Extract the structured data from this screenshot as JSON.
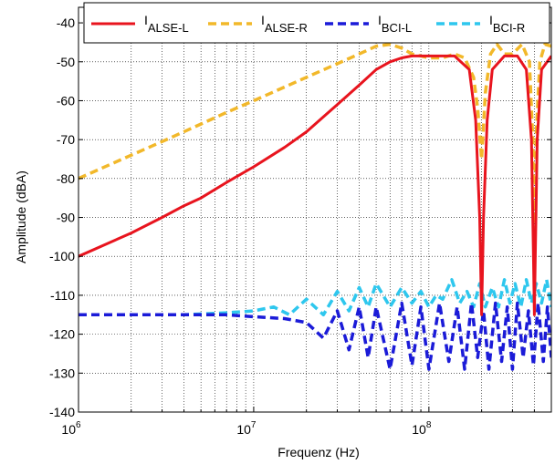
{
  "chart_data": {
    "type": "line",
    "title": "",
    "xlabel": "Frequenz (Hz)",
    "ylabel": "Amplitude (dBA)",
    "xscale": "log",
    "xlim": [
      1000000,
      500000000
    ],
    "ylim": [
      -140,
      -36
    ],
    "yticks": [
      -140,
      -130,
      -120,
      -110,
      -100,
      -90,
      -80,
      -70,
      -60,
      -50,
      -40
    ],
    "xticks": [
      {
        "value": 1000000,
        "base": "10",
        "exp": "6"
      },
      {
        "value": 10000000,
        "base": "10",
        "exp": "7"
      },
      {
        "value": 100000000,
        "base": "10",
        "exp": "8"
      }
    ],
    "grid": true,
    "legend_position": "top",
    "series": [
      {
        "name_main": "I",
        "name_sub": "ALSE-L",
        "color": "#e8141e",
        "style": "solid",
        "x": [
          1000000.0,
          2000000.0,
          3000000.0,
          4000000.0,
          5000000.0,
          7000000.0,
          10000000.0,
          15000000.0,
          20000000.0,
          30000000.0,
          40000000.0,
          50000000.0,
          60000000.0,
          70000000.0,
          80000000.0,
          100000000.0,
          140000000.0,
          170000000.0,
          185000000.0,
          195000000.0,
          200000000.0,
          205000000.0,
          215000000.0,
          230000000.0,
          270000000.0,
          320000000.0,
          360000000.0,
          385000000.0,
          395000000.0,
          400000000.0,
          405000000.0,
          415000000.0,
          440000000.0,
          500000000.0
        ],
        "y": [
          -100,
          -94,
          -90,
          -87,
          -85,
          -81,
          -77,
          -72,
          -68,
          -61,
          -56,
          -52,
          -50,
          -49,
          -48.5,
          -48.5,
          -48.5,
          -52,
          -65,
          -90,
          -115,
          -90,
          -65,
          -52,
          -48.5,
          -48.5,
          -52,
          -70,
          -100,
          -115,
          -100,
          -70,
          -52,
          -48.5
        ]
      },
      {
        "name_main": "I",
        "name_sub": "ALSE-R",
        "color": "#f2b82a",
        "style": "dashed",
        "x": [
          1000000.0,
          2000000.0,
          3000000.0,
          5000000.0,
          7000000.0,
          10000000.0,
          15000000.0,
          20000000.0,
          30000000.0,
          40000000.0,
          50000000.0,
          60000000.0,
          70000000.0,
          80000000.0,
          100000000.0,
          120000000.0,
          140000000.0,
          160000000.0,
          180000000.0,
          190000000.0,
          200000000.0,
          210000000.0,
          225000000.0,
          245000000.0,
          270000000.0,
          300000000.0,
          340000000.0,
          375000000.0,
          390000000.0,
          400000000.0,
          410000000.0,
          430000000.0,
          460000000.0,
          500000000.0
        ],
        "y": [
          -80,
          -74,
          -70.5,
          -66,
          -63,
          -60,
          -56.5,
          -54,
          -50.5,
          -48,
          -46,
          -45.5,
          -46.5,
          -48,
          -49,
          -49,
          -48,
          -49,
          -54,
          -62,
          -75,
          -58,
          -48,
          -45.5,
          -48,
          -48,
          -45.5,
          -50,
          -68,
          -95,
          -68,
          -50,
          -45.5,
          -46
        ]
      },
      {
        "name_main": "I",
        "name_sub": "BCI-L",
        "color": "#1b1bd8",
        "style": "dashed",
        "x": [
          1000000.0,
          2000000.0,
          4000000.0,
          7000000.0,
          10000000.0,
          15000000.0,
          20000000.0,
          25000000.0,
          30000000.0,
          35000000.0,
          40000000.0,
          45000000.0,
          50000000.0,
          60000000.0,
          70000000.0,
          80000000.0,
          90000000.0,
          100000000.0,
          115000000.0,
          130000000.0,
          145000000.0,
          160000000.0,
          175000000.0,
          190000000.0,
          205000000.0,
          220000000.0,
          240000000.0,
          260000000.0,
          280000000.0,
          300000000.0,
          320000000.0,
          345000000.0,
          370000000.0,
          395000000.0,
          420000000.0,
          450000000.0,
          475000000.0,
          500000000.0
        ],
        "y": [
          -115,
          -115,
          -115,
          -115,
          -115.5,
          -116,
          -117,
          -121,
          -114,
          -124,
          -113,
          -126,
          -113,
          -129,
          -112,
          -128,
          -113,
          -129,
          -112,
          -127,
          -113,
          -129,
          -112,
          -126,
          -114,
          -129,
          -112,
          -127,
          -113,
          -129,
          -112,
          -126,
          -114,
          -128,
          -112,
          -127,
          -113,
          -126
        ]
      },
      {
        "name_main": "I",
        "name_sub": "BCI-R",
        "color": "#2ec7ee",
        "style": "dashed",
        "x": [
          1000000.0,
          2000000.0,
          4000000.0,
          7000000.0,
          10000000.0,
          13000000.0,
          16000000.0,
          20000000.0,
          25000000.0,
          30000000.0,
          35000000.0,
          40000000.0,
          45000000.0,
          50000000.0,
          60000000.0,
          70000000.0,
          80000000.0,
          90000000.0,
          100000000.0,
          110000000.0,
          120000000.0,
          135000000.0,
          150000000.0,
          165000000.0,
          180000000.0,
          195000000.0,
          210000000.0,
          230000000.0,
          250000000.0,
          270000000.0,
          290000000.0,
          310000000.0,
          335000000.0,
          360000000.0,
          385000000.0,
          410000000.0,
          440000000.0,
          470000000.0,
          500000000.0
        ],
        "y": [
          -115,
          -115,
          -115,
          -114.5,
          -114,
          -113,
          -115,
          -111,
          -115,
          -109,
          -114,
          -108,
          -113,
          -107,
          -113,
          -108,
          -112,
          -109,
          -113,
          -110,
          -111,
          -106,
          -112,
          -109,
          -113,
          -107,
          -113,
          -108,
          -113,
          -106,
          -112,
          -107,
          -113,
          -106,
          -112,
          -107,
          -112,
          -106,
          -113
        ]
      }
    ]
  }
}
